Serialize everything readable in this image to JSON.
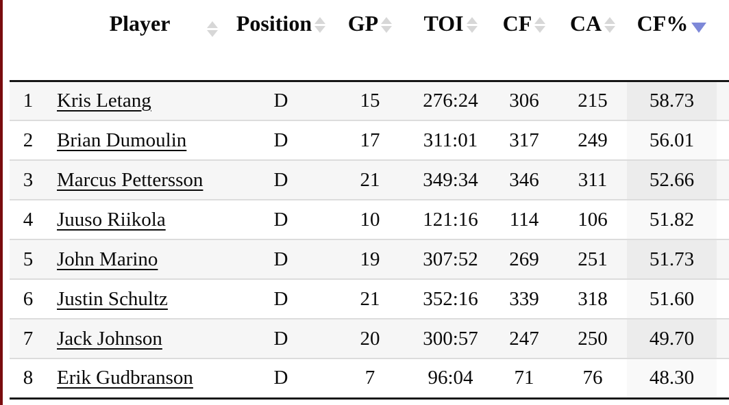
{
  "colors": {
    "page_left_border": "#7a0c0e",
    "row_alt_background": "#f6f6f6",
    "sorted_cell_on_alt_row": "#ececec",
    "sorted_cell_on_white_row": "#f9f9f9",
    "row_divider": "#dcdcdc",
    "heavy_rule": "#161616",
    "sort_icon_inactive": "#d7d7d7",
    "sort_icon_active": "#7d88d8",
    "text": "#0a0a0a"
  },
  "table": {
    "sorted_column": "CF%",
    "sort_direction": "descending",
    "headers": {
      "rank": "",
      "player": "Player",
      "position": "Position",
      "gp": "GP",
      "toi": "TOI",
      "cf": "CF",
      "ca": "CA",
      "cfpct": "CF%"
    },
    "rows": [
      {
        "rank": "1",
        "player": "Kris Letang",
        "position": "D",
        "gp": "15",
        "toi": "276:24",
        "cf": "306",
        "ca": "215",
        "cfpct": "58.73"
      },
      {
        "rank": "2",
        "player": "Brian Dumoulin",
        "position": "D",
        "gp": "17",
        "toi": "311:01",
        "cf": "317",
        "ca": "249",
        "cfpct": "56.01"
      },
      {
        "rank": "3",
        "player": "Marcus Pettersson",
        "position": "D",
        "gp": "21",
        "toi": "349:34",
        "cf": "346",
        "ca": "311",
        "cfpct": "52.66"
      },
      {
        "rank": "4",
        "player": "Juuso Riikola",
        "position": "D",
        "gp": "10",
        "toi": "121:16",
        "cf": "114",
        "ca": "106",
        "cfpct": "51.82"
      },
      {
        "rank": "5",
        "player": "John Marino",
        "position": "D",
        "gp": "19",
        "toi": "307:52",
        "cf": "269",
        "ca": "251",
        "cfpct": "51.73"
      },
      {
        "rank": "6",
        "player": "Justin Schultz",
        "position": "D",
        "gp": "21",
        "toi": "352:16",
        "cf": "339",
        "ca": "318",
        "cfpct": "51.60"
      },
      {
        "rank": "7",
        "player": "Jack Johnson",
        "position": "D",
        "gp": "20",
        "toi": "300:57",
        "cf": "247",
        "ca": "250",
        "cfpct": "49.70"
      },
      {
        "rank": "8",
        "player": "Erik Gudbranson",
        "position": "D",
        "gp": "7",
        "toi": "96:04",
        "cf": "71",
        "ca": "76",
        "cfpct": "48.30"
      }
    ]
  }
}
